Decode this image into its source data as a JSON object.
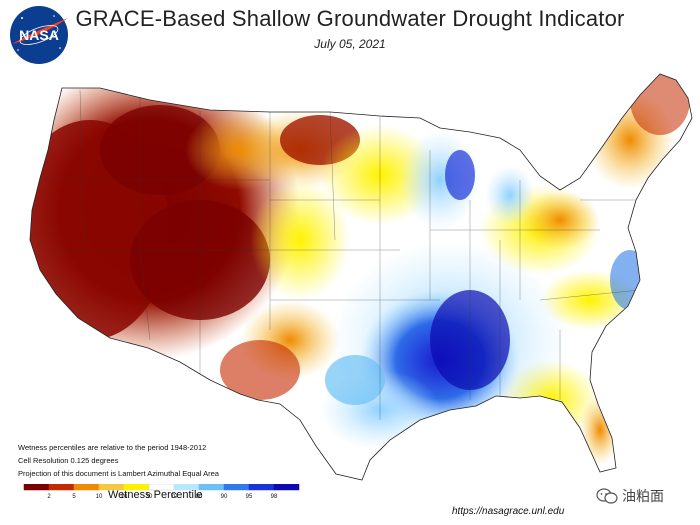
{
  "header": {
    "title": "GRACE-Based Shallow Groundwater Drought Indicator",
    "date": "July 05, 2021"
  },
  "logo": {
    "text": "NASA"
  },
  "notes": [
    "Wetness percentiles are relative to the period 1948-2012",
    "Cell Resolution 0.125 degrees",
    "Projection of this document is Lambert Azimuthal Equal Area"
  ],
  "legend": {
    "title": "Wetness Percentile",
    "ticks": [
      "2",
      "5",
      "10",
      "20",
      "30",
      "70",
      "80",
      "90",
      "95",
      "98"
    ],
    "colors": [
      "#7a0000",
      "#c42a00",
      "#f08a00",
      "#f5c842",
      "#fff200",
      "#ffffff",
      "#b8e8ff",
      "#6cc0f5",
      "#2f7be8",
      "#1a32d8",
      "#0a0ab0"
    ]
  },
  "footer": {
    "url": "https://nasagrace.unl.edu",
    "watermark": "油粕面"
  }
}
